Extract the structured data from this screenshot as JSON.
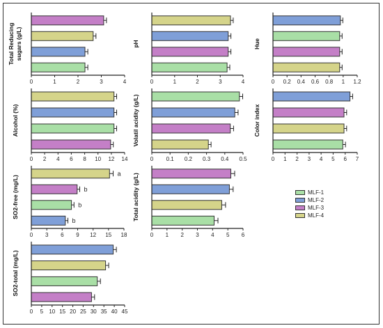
{
  "colors": {
    "MLF-1": "#a9dfa6",
    "MLF-2": "#7f9fd8",
    "MLF-3": "#c47fc7",
    "MLF-4": "#d5d48a"
  },
  "legend": [
    "MLF-1",
    "MLF-2",
    "MLF-3",
    "MLF-4"
  ],
  "chart_data": [
    {
      "type": "bar",
      "orientation": "horizontal",
      "ylabel": "Total Reducing sugars (g/L)",
      "xlim": [
        0,
        4
      ],
      "xticks": [
        0,
        1,
        2,
        3,
        4
      ],
      "bars": [
        {
          "series": "MLF-3",
          "value": 3.1,
          "error": 0.12
        },
        {
          "series": "MLF-4",
          "value": 2.65,
          "error": 0.12
        },
        {
          "series": "MLF-2",
          "value": 2.3,
          "error": 0.12
        },
        {
          "series": "MLF-1",
          "value": 2.3,
          "error": 0.12
        }
      ]
    },
    {
      "type": "bar",
      "orientation": "horizontal",
      "ylabel": "pH",
      "xlim": [
        0,
        4
      ],
      "xticks": [
        0,
        1,
        2,
        3,
        4
      ],
      "bars": [
        {
          "series": "MLF-4",
          "value": 3.45,
          "error": 0.12
        },
        {
          "series": "MLF-2",
          "value": 3.35,
          "error": 0.12
        },
        {
          "series": "MLF-3",
          "value": 3.35,
          "error": 0.12
        },
        {
          "series": "MLF-1",
          "value": 3.3,
          "error": 0.12
        }
      ]
    },
    {
      "type": "bar",
      "orientation": "horizontal",
      "ylabel": "Hue",
      "xlim": [
        0,
        1.2
      ],
      "xticks": [
        0,
        0.2,
        0.4,
        0.6,
        0.8,
        1,
        1.2
      ],
      "xtick_labels": [
        "0",
        "0.2",
        "0.4",
        "0.6",
        "0.8",
        "1",
        "1.2"
      ],
      "bars": [
        {
          "series": "MLF-2",
          "value": 0.96,
          "error": 0.035
        },
        {
          "series": "MLF-1",
          "value": 0.95,
          "error": 0.035
        },
        {
          "series": "MLF-3",
          "value": 0.95,
          "error": 0.035
        },
        {
          "series": "MLF-4",
          "value": 0.95,
          "error": 0.035
        }
      ]
    },
    {
      "type": "bar",
      "orientation": "horizontal",
      "ylabel": "Alcohol (%)",
      "xlim": [
        0,
        14
      ],
      "xticks": [
        0,
        2,
        4,
        6,
        8,
        10,
        12,
        14
      ],
      "bars": [
        {
          "series": "MLF-4",
          "value": 12.4,
          "error": 0.4
        },
        {
          "series": "MLF-2",
          "value": 12.4,
          "error": 0.4
        },
        {
          "series": "MLF-1",
          "value": 12.4,
          "error": 0.4
        },
        {
          "series": "MLF-3",
          "value": 11.9,
          "error": 0.4
        }
      ]
    },
    {
      "type": "bar",
      "orientation": "horizontal",
      "ylabel": "Volatil acidity (g/L)",
      "xlim": [
        0,
        0.5
      ],
      "xticks": [
        0,
        0.1,
        0.2,
        0.3,
        0.4,
        0.5
      ],
      "xtick_labels": [
        "0",
        "0.1",
        "0.2",
        "0.3",
        "0.4",
        "0.5"
      ],
      "bars": [
        {
          "series": "MLF-1",
          "value": 0.48,
          "error": 0.018
        },
        {
          "series": "MLF-2",
          "value": 0.455,
          "error": 0.018
        },
        {
          "series": "MLF-3",
          "value": 0.43,
          "error": 0.018
        },
        {
          "series": "MLF-4",
          "value": 0.31,
          "error": 0.015
        }
      ]
    },
    {
      "type": "bar",
      "orientation": "horizontal",
      "ylabel": "Color index",
      "xlim": [
        0,
        7
      ],
      "xticks": [
        0,
        1,
        2,
        3,
        4,
        5,
        6,
        7
      ],
      "bars": [
        {
          "series": "MLF-2",
          "value": 6.4,
          "error": 0.22
        },
        {
          "series": "MLF-3",
          "value": 5.9,
          "error": 0.22
        },
        {
          "series": "MLF-4",
          "value": 5.9,
          "error": 0.22
        },
        {
          "series": "MLF-1",
          "value": 5.8,
          "error": 0.22
        }
      ]
    },
    {
      "type": "bar",
      "orientation": "horizontal",
      "ylabel": "SO2-free (mg/L)",
      "xlim": [
        0,
        18
      ],
      "xticks": [
        0,
        3,
        6,
        9,
        12,
        15,
        18
      ],
      "bars": [
        {
          "series": "MLF-4",
          "value": 15.2,
          "error": 0.7,
          "annotation": "a"
        },
        {
          "series": "MLF-3",
          "value": 8.9,
          "error": 0.5,
          "annotation": "b"
        },
        {
          "series": "MLF-1",
          "value": 7.8,
          "error": 0.5,
          "annotation": "b"
        },
        {
          "series": "MLF-2",
          "value": 6.6,
          "error": 0.5,
          "annotation": "b"
        }
      ]
    },
    {
      "type": "bar",
      "orientation": "horizontal",
      "ylabel": "Total acidity (g/L)",
      "xlim": [
        0,
        6
      ],
      "xticks": [
        0,
        1,
        2,
        3,
        4,
        5,
        6
      ],
      "bars": [
        {
          "series": "MLF-3",
          "value": 5.2,
          "error": 0.25
        },
        {
          "series": "MLF-2",
          "value": 5.1,
          "error": 0.25
        },
        {
          "series": "MLF-4",
          "value": 4.6,
          "error": 0.25
        },
        {
          "series": "MLF-1",
          "value": 4.1,
          "error": 0.25
        }
      ]
    },
    {
      "type": "bar",
      "orientation": "horizontal",
      "ylabel": "SO2-total (mg/L)",
      "xlim": [
        0,
        45
      ],
      "xticks": [
        0,
        5,
        10,
        15,
        20,
        25,
        30,
        35,
        40,
        45
      ],
      "bars": [
        {
          "series": "MLF-2",
          "value": 39.5,
          "error": 1.5
        },
        {
          "series": "MLF-4",
          "value": 35.8,
          "error": 1.5
        },
        {
          "series": "MLF-1",
          "value": 31.8,
          "error": 1.5
        },
        {
          "series": "MLF-3",
          "value": 29.0,
          "error": 1.5
        }
      ]
    }
  ]
}
